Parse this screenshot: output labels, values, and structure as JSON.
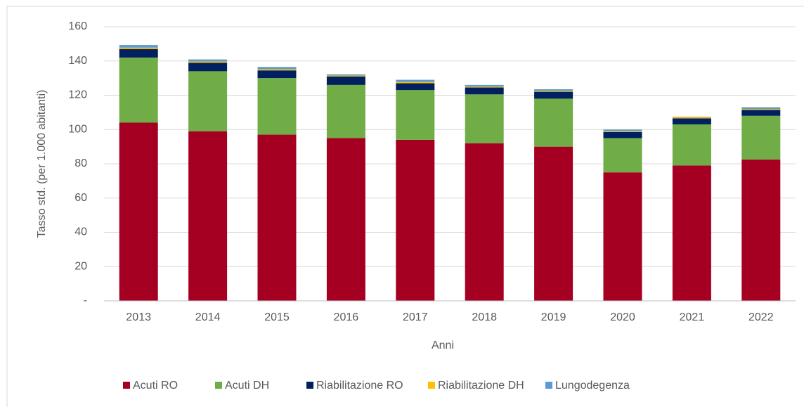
{
  "chart_data": {
    "type": "bar",
    "stacked": true,
    "x_label": "Anni",
    "y_label": "Tasso std. (per 1.000 abitanti)",
    "categories": [
      "2013",
      "2014",
      "2015",
      "2016",
      "2017",
      "2018",
      "2019",
      "2020",
      "2021",
      "2022"
    ],
    "series": [
      {
        "name": "Acuti RO",
        "color": "#a50021",
        "values": [
          104,
          99,
          97,
          95,
          94,
          92,
          90,
          75,
          79,
          82.5
        ]
      },
      {
        "name": "Acuti DH",
        "color": "#70ad47",
        "values": [
          38,
          35,
          33,
          31,
          29,
          28.5,
          28,
          20,
          24,
          25.5
        ]
      },
      {
        "name": "Riabilitazione RO",
        "color": "#002060",
        "values": [
          5,
          5,
          4.5,
          5,
          4,
          4,
          4,
          3.5,
          3.5,
          3.5
        ]
      },
      {
        "name": "Riabilitazione DH",
        "color": "#ffc000",
        "values": [
          0.8,
          0.7,
          0.7,
          0.5,
          0.8,
          0.5,
          0.5,
          0.5,
          0.8,
          0.5
        ]
      },
      {
        "name": "Lungodegenza",
        "color": "#5b9bd5",
        "values": [
          1.5,
          1.2,
          1.3,
          0.7,
          1.2,
          1,
          1,
          1,
          0.2,
          1
        ]
      }
    ],
    "ylim": [
      0,
      160
    ],
    "yticks": [
      {
        "value": 0,
        "label": "-"
      },
      20,
      40,
      60,
      80,
      100,
      120,
      140,
      160
    ],
    "grid": true,
    "legend": "bottom"
  }
}
